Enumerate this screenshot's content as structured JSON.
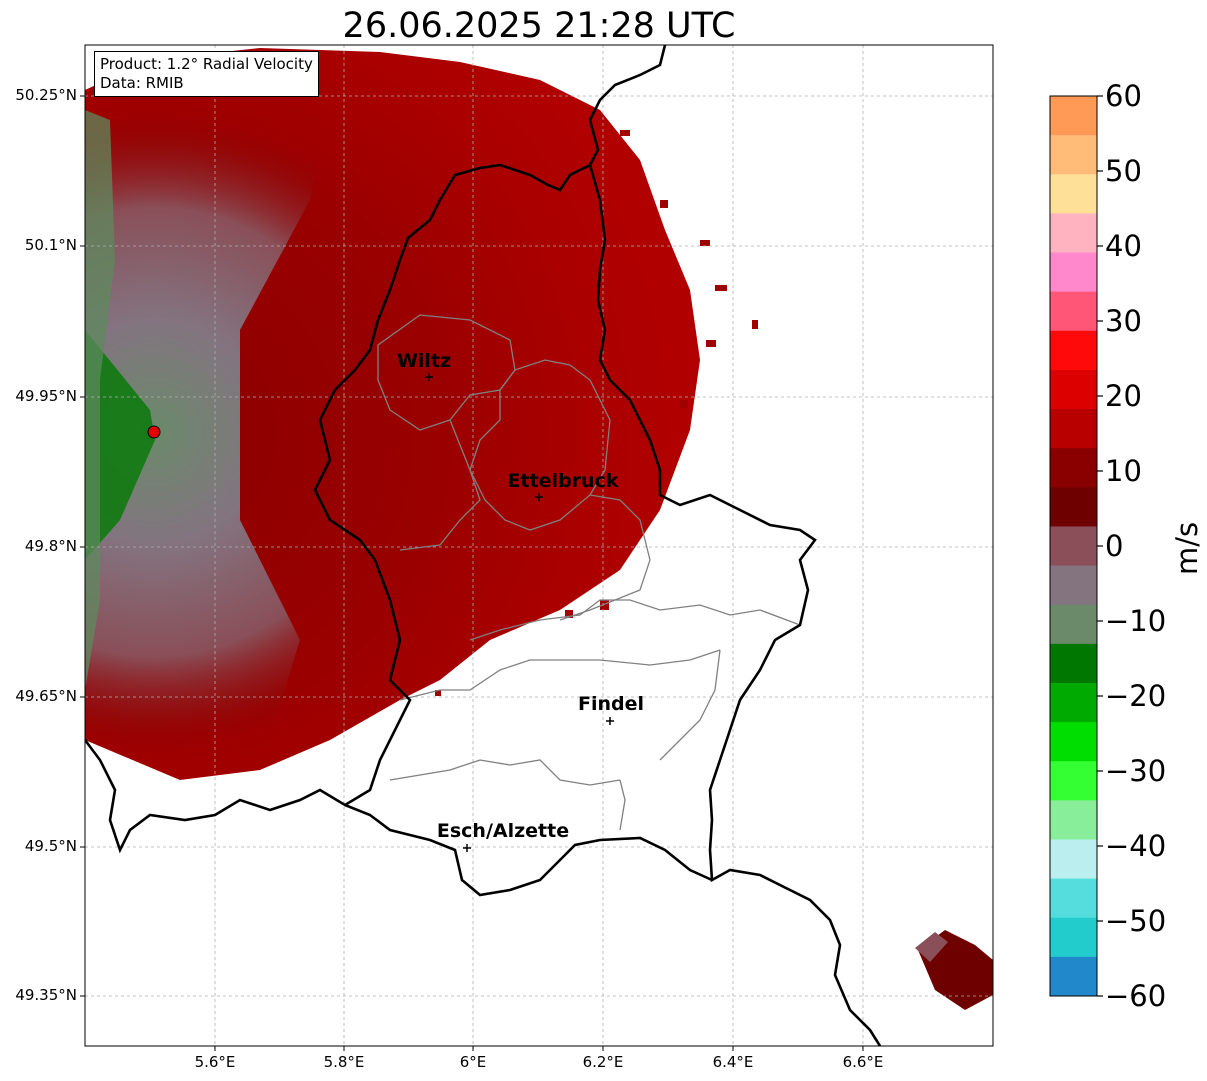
{
  "title": "26.06.2025 21:28 UTC",
  "info": {
    "product": "Product: 1.2° Radial Velocity",
    "source": "Data: RMIB"
  },
  "axes": {
    "lat_labels": [
      "50.25°N",
      "50.1°N",
      "49.95°N",
      "49.8°N",
      "49.65°N",
      "49.5°N",
      "49.35°N"
    ],
    "lon_labels": [
      "5.6°E",
      "5.8°E",
      "6°E",
      "6.2°E",
      "6.4°E",
      "6.6°E"
    ],
    "grid": "dashed",
    "lat_range": [
      49.3,
      50.3
    ],
    "lon_range": [
      5.4,
      6.8
    ]
  },
  "cities": [
    {
      "name": "Wiltz",
      "lon": 5.93,
      "lat": 49.966
    },
    {
      "name": "Ettelbruck",
      "lon": 6.1,
      "lat": 49.85
    },
    {
      "name": "Findel",
      "lon": 6.21,
      "lat": 49.627
    },
    {
      "name": "Esch/Alzette",
      "lon": 5.99,
      "lat": 49.5
    }
  ],
  "radar_site": {
    "lon": 5.505,
    "lat": 49.915
  },
  "colorbar": {
    "label": "m/s",
    "min": -60,
    "max": 60,
    "ticks": [
      "60",
      "50",
      "40",
      "30",
      "20",
      "10",
      "0",
      "−10",
      "−20",
      "−30",
      "−40",
      "−50",
      "−60"
    ],
    "colors": [
      "#ff9955",
      "#ffbb77",
      "#ffe098",
      "#ffb3c0",
      "#ff88cc",
      "#ff5577",
      "#ff0a0a",
      "#dd0000",
      "#b80000",
      "#8a0000",
      "#6e0000",
      "#8a4f58",
      "#837480",
      "#6a8a6a",
      "#007700",
      "#00aa00",
      "#00dd00",
      "#33ff33",
      "#88ee99",
      "#bbeeee",
      "#55dddd",
      "#22cccc",
      "#2288cc"
    ]
  }
}
